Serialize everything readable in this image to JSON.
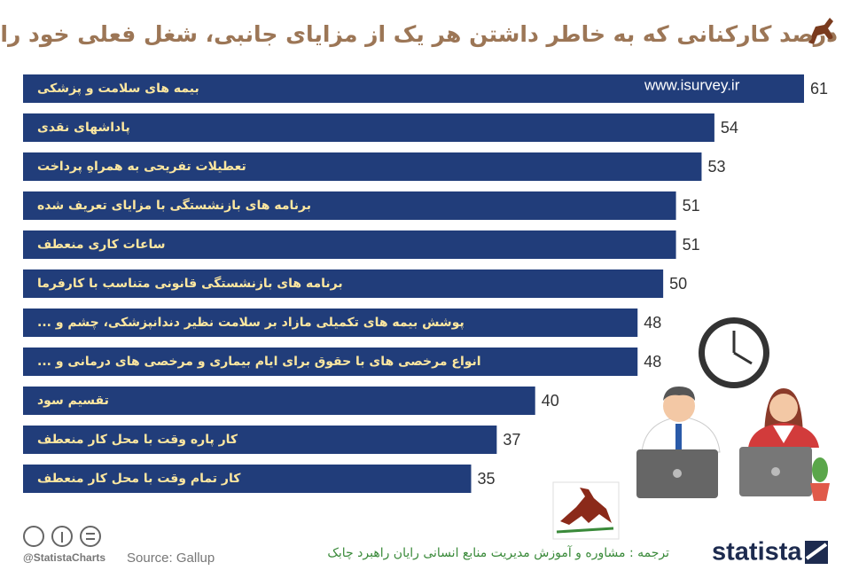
{
  "chart_data": {
    "type": "bar",
    "orientation": "horizontal",
    "title": "درصد کارکنانی که به خاطر داشتن هر یک از مزایای جانبی، شغل فعلی خود را رها می کنند",
    "categories": [
      "بیمه های سلامت و پزشکی",
      "پاداشهای نقدی",
      "تعطیلات تفریحی به همراهِ پرداخت",
      "برنامه های بازنشستگی با مزایای تعریف شده",
      "ساعات کاری منعطف",
      "برنامه های بازنشستگی قانونی متناسب با کارفرما",
      "پوشش بیمه های تکمیلی مازاد بر سلامت نظیر دندانپزشکی، چشم و ...",
      "انواع مرخصی های با حقوق برای ایام بیماری و مرخصی های درمانی و ...",
      "تقسیم سود",
      "کار پاره وقت با محل کار منعطف",
      "کار تمام وقت با محل کار منعطف"
    ],
    "values": [
      61,
      54,
      53,
      51,
      51,
      50,
      48,
      48,
      40,
      37,
      35
    ],
    "color": "#213d7a",
    "watermark": "www.isurvey.ir",
    "credit": "@StatistaCharts",
    "source": "Source: Gallup",
    "brand": "statista",
    "translation": "ترجمه : مشاوره و آموزش مدیریت منابع انسانی رایان راهبرد چابک"
  }
}
